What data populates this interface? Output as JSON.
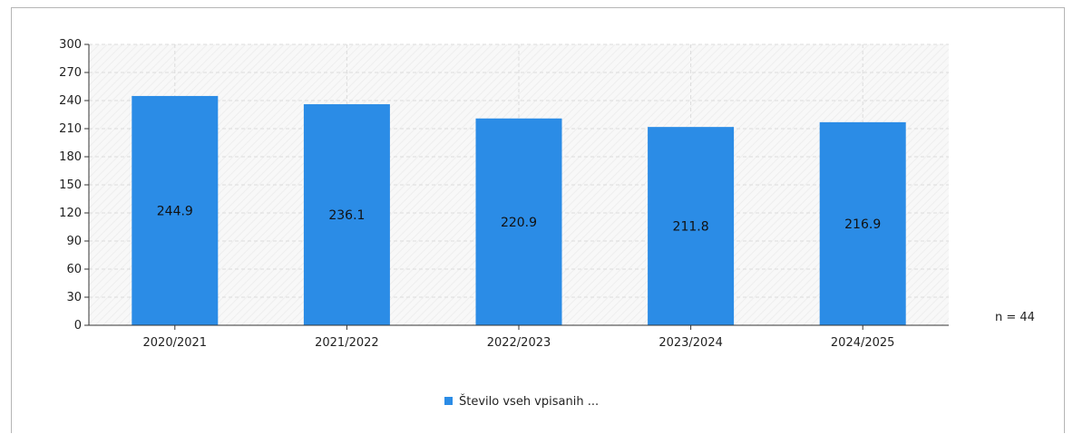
{
  "chart_data": {
    "type": "bar",
    "categories": [
      "2020/2021",
      "2021/2022",
      "2022/2023",
      "2023/2024",
      "2024/2025"
    ],
    "series": [
      {
        "name": "Število vseh vpisanih ...",
        "values": [
          244.9,
          236.1,
          220.9,
          211.8,
          216.9
        ],
        "color": "#2b8ce6"
      }
    ],
    "data_labels": [
      "244.9",
      "236.1",
      "220.9",
      "211.8",
      "216.9"
    ],
    "ylim": [
      0,
      300
    ],
    "yticks": [
      0,
      30,
      60,
      90,
      120,
      150,
      180,
      210,
      240,
      270,
      300
    ],
    "ytick_labels": [
      "0",
      "30",
      "60",
      "90",
      "120",
      "150",
      "180",
      "210",
      "240",
      "270",
      "300"
    ],
    "grid": true,
    "legend_position": "bottom",
    "annotation": "n = 44",
    "colors": {
      "bar": "#2b8ce6",
      "grid": "#dcdcdc",
      "axis": "#333333",
      "plot_bg": "#f7f7f7"
    }
  }
}
